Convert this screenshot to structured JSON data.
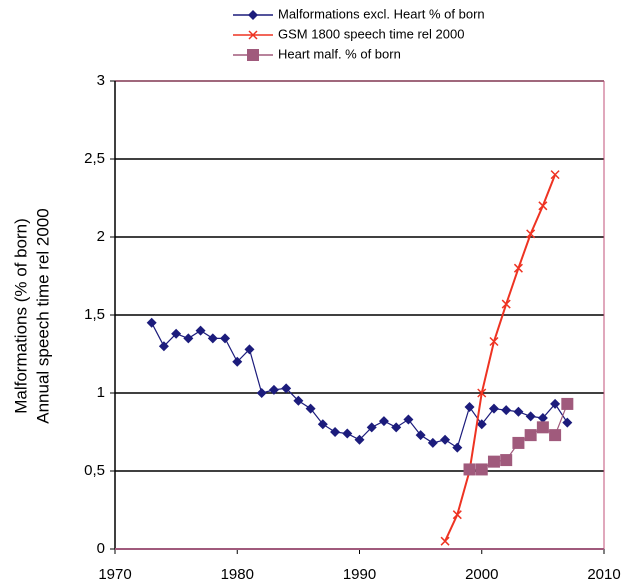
{
  "chart_data": {
    "type": "line",
    "ylabel": [
      "Malformations (% of born)",
      "Annual speech time rel 2000"
    ],
    "xlim": [
      1970,
      2010
    ],
    "xticks": [
      1970,
      1980,
      1990,
      2000,
      2010
    ],
    "ylim": [
      0,
      3
    ],
    "yticks": [
      0,
      {
        "value": 0.5,
        "label": "0,5"
      },
      1,
      {
        "value": 1.5,
        "label": "1,5"
      },
      2,
      {
        "value": 2.5,
        "label": "2,5"
      },
      3
    ],
    "grid": true,
    "series": [
      {
        "name": "Malformations excl. Heart % of born",
        "color": "#1c1c7c",
        "marker": "diamond",
        "x": [
          1973,
          1974,
          1975,
          1976,
          1977,
          1978,
          1979,
          1980,
          1981,
          1982,
          1983,
          1984,
          1985,
          1986,
          1987,
          1988,
          1989,
          1990,
          1991,
          1992,
          1993,
          1994,
          1995,
          1996,
          1997,
          1998,
          1999,
          2000,
          2001,
          2002,
          2003,
          2004,
          2005,
          2006,
          2007
        ],
        "values": [
          1.45,
          1.3,
          1.38,
          1.35,
          1.4,
          1.35,
          1.35,
          1.2,
          1.28,
          1.0,
          1.02,
          1.03,
          0.95,
          0.9,
          0.8,
          0.75,
          0.74,
          0.7,
          0.78,
          0.82,
          0.78,
          0.83,
          0.73,
          0.68,
          0.7,
          0.65,
          0.91,
          0.8,
          0.9,
          0.89,
          0.88,
          0.85,
          0.84,
          0.93,
          0.81
        ]
      },
      {
        "name": "GSM 1800 speech time rel 2000",
        "color": "#ee3322",
        "marker": "x",
        "x": [
          1997,
          1998,
          1999,
          2000,
          2001,
          2002,
          2003,
          2004,
          2005,
          2006
        ],
        "values": [
          0.05,
          0.22,
          0.5,
          1.0,
          1.33,
          1.57,
          1.8,
          2.02,
          2.2,
          2.4
        ]
      },
      {
        "name": "Heart malf. % of born",
        "color": "#a05a7c",
        "marker": "square",
        "x": [
          1999,
          2000,
          2001,
          2002,
          2003,
          2004,
          2005,
          2006,
          2007
        ],
        "values": [
          0.51,
          0.51,
          0.56,
          0.57,
          0.68,
          0.73,
          0.78,
          0.73,
          0.93
        ]
      }
    ]
  }
}
